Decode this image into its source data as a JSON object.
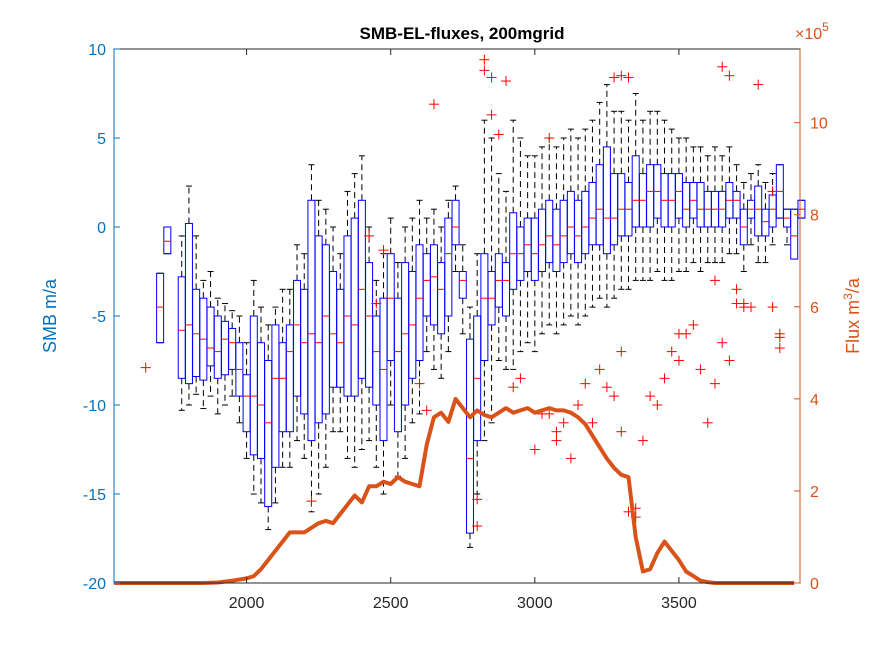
{
  "chart_data": {
    "type": "boxplot",
    "title": "SMB-EL-fluxes, 200mgrid",
    "xlabel": "",
    "ylabel_left": "SMB m/a",
    "ylabel_right_prefix": "Flux m",
    "ylabel_right_sup": "3",
    "ylabel_right_suffix": "/a",
    "right_multiplier_prefix": "×10",
    "right_multiplier_exp": "5",
    "xlim": [
      1540,
      3920
    ],
    "ylim_left": [
      -20,
      10
    ],
    "ylim_right": [
      0,
      11.6
    ],
    "x_ticks": [
      2000,
      2500,
      3000,
      3500
    ],
    "y_ticks_left": [
      -20,
      -15,
      -10,
      -5,
      0,
      5,
      10
    ],
    "y_ticks_right": [
      0,
      2,
      4,
      6,
      8,
      10
    ],
    "colors": {
      "left_axis": "#0072BD",
      "right_axis": "#D95319",
      "box": "#0000FF",
      "median": "#FF0000",
      "whisker": "#000000",
      "outlier": "#FF0000",
      "flux_line": "#D95319"
    },
    "boxes": [
      {
        "x": 1700,
        "q1": -6.5,
        "med": -4.5,
        "q3": -2.6,
        "lo": -6.5,
        "hi": -2.6
      },
      {
        "x": 1725,
        "q1": -1.5,
        "med": -0.8,
        "q3": 0,
        "lo": -1.5,
        "hi": 0
      },
      {
        "x": 1775,
        "q1": -8.5,
        "med": -5.8,
        "q3": -2.8,
        "lo": -10.3,
        "hi": -0.5
      },
      {
        "x": 1800,
        "q1": -8.8,
        "med": -5.5,
        "q3": 0.2,
        "lo": -10,
        "hi": 2.3
      },
      {
        "x": 1825,
        "q1": -8.4,
        "med": -6,
        "q3": -3.5,
        "lo": -9.4,
        "hi": -0.5
      },
      {
        "x": 1850,
        "q1": -8.6,
        "med": -6.3,
        "q3": -4,
        "lo": -10.2,
        "hi": -3
      },
      {
        "x": 1875,
        "q1": -7.8,
        "med": -6.8,
        "q3": -4.5,
        "lo": -9.5,
        "hi": -2.5
      },
      {
        "x": 1900,
        "q1": -8.5,
        "med": -7,
        "q3": -5,
        "lo": -10.5,
        "hi": -4
      },
      {
        "x": 1925,
        "q1": -8.3,
        "med": -6.3,
        "q3": -5.3,
        "lo": -10,
        "hi": -4.3
      },
      {
        "x": 1950,
        "q1": -8,
        "med": -6.5,
        "q3": -5.7,
        "lo": -9.5,
        "hi": -4.7
      },
      {
        "x": 1975,
        "q1": -9.5,
        "med": -8,
        "q3": -6.5,
        "lo": -11,
        "hi": -5
      },
      {
        "x": 2000,
        "q1": -11.5,
        "med": -9.5,
        "q3": -8.3,
        "lo": -13,
        "hi": -6.5
      },
      {
        "x": 2025,
        "q1": -12.8,
        "med": -9.5,
        "q3": -5,
        "lo": -15,
        "hi": -3
      },
      {
        "x": 2050,
        "q1": -13,
        "med": -10,
        "q3": -6.5,
        "lo": -15.5,
        "hi": -4.5
      },
      {
        "x": 2075,
        "q1": -15.7,
        "med": -11,
        "q3": -7.5,
        "lo": -17,
        "hi": -5.5
      },
      {
        "x": 2100,
        "q1": -13.5,
        "med": -8.5,
        "q3": -5.5,
        "lo": -15.5,
        "hi": -4.5
      },
      {
        "x": 2125,
        "q1": -11.5,
        "med": -8.5,
        "q3": -6.5,
        "lo": -13.5,
        "hi": -3.5
      },
      {
        "x": 2150,
        "q1": -11.5,
        "med": -7,
        "q3": -5.5,
        "lo": -13.5,
        "hi": -3.5
      },
      {
        "x": 2175,
        "q1": -9.5,
        "med": -5.5,
        "q3": -3,
        "lo": -12,
        "hi": -1
      },
      {
        "x": 2200,
        "q1": -10.5,
        "med": -6.5,
        "q3": -3.5,
        "lo": -13,
        "hi": -1.5
      },
      {
        "x": 2225,
        "q1": -12,
        "med": -6,
        "q3": 1.5,
        "lo": -16,
        "hi": 3.5
      },
      {
        "x": 2250,
        "q1": -11,
        "med": -6.5,
        "q3": -0.5,
        "lo": -15,
        "hi": 1.5
      },
      {
        "x": 2275,
        "q1": -10.5,
        "med": -5,
        "q3": -1,
        "lo": -13.5,
        "hi": 1
      },
      {
        "x": 2300,
        "q1": -9,
        "med": -6,
        "q3": -2.5,
        "lo": -11.5,
        "hi": 0
      },
      {
        "x": 2325,
        "q1": -9,
        "med": -6.5,
        "q3": -3.5,
        "lo": -11.5,
        "hi": -1.5
      },
      {
        "x": 2350,
        "q1": -9.5,
        "med": -5,
        "q3": -0.5,
        "lo": -13,
        "hi": 2
      },
      {
        "x": 2375,
        "q1": -9.5,
        "med": -5.5,
        "q3": 0.5,
        "lo": -13.5,
        "hi": 3
      },
      {
        "x": 2400,
        "q1": -8.5,
        "med": -3.5,
        "q3": 1.5,
        "lo": -12.5,
        "hi": 4
      },
      {
        "x": 2425,
        "q1": -9,
        "med": -5,
        "q3": -2,
        "lo": -12,
        "hi": 0
      },
      {
        "x": 2450,
        "q1": -10,
        "med": -7,
        "q3": -5,
        "lo": -13.5,
        "hi": -3
      },
      {
        "x": 2475,
        "q1": -12,
        "med": -8,
        "q3": -4,
        "lo": -15,
        "hi": -1.5
      },
      {
        "x": 2500,
        "q1": -7.5,
        "med": -4,
        "q3": -1.5,
        "lo": -10,
        "hi": 0.5
      },
      {
        "x": 2525,
        "q1": -11.5,
        "med": -7,
        "q3": -4,
        "lo": -14,
        "hi": -2
      },
      {
        "x": 2550,
        "q1": -10,
        "med": -6,
        "q3": -2,
        "lo": -13,
        "hi": 0
      },
      {
        "x": 2575,
        "q1": -8.5,
        "med": -5.5,
        "q3": -2.5,
        "lo": -11,
        "hi": 0.5
      },
      {
        "x": 2600,
        "q1": -7.5,
        "med": -4,
        "q3": -1,
        "lo": -10.5,
        "hi": 1.5
      },
      {
        "x": 2625,
        "q1": -5,
        "med": -3,
        "q3": -1.5,
        "lo": -7,
        "hi": 0.5
      },
      {
        "x": 2650,
        "q1": -5.5,
        "med": -2.8,
        "q3": -1,
        "lo": -8,
        "hi": 1
      },
      {
        "x": 2675,
        "q1": -6,
        "med": -3.5,
        "q3": -2,
        "lo": -8.5,
        "hi": 0
      },
      {
        "x": 2700,
        "q1": -5,
        "med": -1.5,
        "q3": 0.5,
        "lo": -7,
        "hi": 1.5
      },
      {
        "x": 2725,
        "q1": -1,
        "med": 0,
        "q3": 1.5,
        "lo": -2.5,
        "hi": 2.3
      },
      {
        "x": 2750,
        "q1": -4,
        "med": -3,
        "q3": -2.5,
        "lo": -6,
        "hi": -1
      },
      {
        "x": 2775,
        "q1": -17.2,
        "med": -13,
        "q3": -6.3,
        "lo": -18,
        "hi": -4.5
      },
      {
        "x": 2800,
        "q1": -12,
        "med": -8.5,
        "q3": -5,
        "lo": -15,
        "hi": -1.5
      },
      {
        "x": 2825,
        "q1": -7.5,
        "med": -4,
        "q3": -1.5,
        "lo": -12,
        "hi": 6
      },
      {
        "x": 2850,
        "q1": -5.5,
        "med": -4,
        "q3": -2.5,
        "lo": -11,
        "hi": 5
      },
      {
        "x": 2875,
        "q1": -4.5,
        "med": -3,
        "q3": -1.5,
        "lo": -7.5,
        "hi": 3
      },
      {
        "x": 2900,
        "q1": -5,
        "med": -3,
        "q3": -2,
        "lo": -8,
        "hi": 2
      },
      {
        "x": 2925,
        "q1": -3.5,
        "med": -1.5,
        "q3": 0.8,
        "lo": -8,
        "hi": 6
      },
      {
        "x": 2950,
        "q1": -3,
        "med": -1.5,
        "q3": 0,
        "lo": -7,
        "hi": 5
      },
      {
        "x": 2975,
        "q1": -2.5,
        "med": -1,
        "q3": 0.5,
        "lo": -6.5,
        "hi": 4
      },
      {
        "x": 3000,
        "q1": -3,
        "med": -1.5,
        "q3": 0.5,
        "lo": -7,
        "hi": 4
      },
      {
        "x": 3025,
        "q1": -2.5,
        "med": -1,
        "q3": 1,
        "lo": -6,
        "hi": 4.5
      },
      {
        "x": 3050,
        "q1": -2,
        "med": -0.5,
        "q3": 1.5,
        "lo": -5.5,
        "hi": 5
      },
      {
        "x": 3075,
        "q1": -2.5,
        "med": -1,
        "q3": 1,
        "lo": -6,
        "hi": 4.5
      },
      {
        "x": 3100,
        "q1": -2,
        "med": -0.5,
        "q3": 1.5,
        "lo": -5.5,
        "hi": 5
      },
      {
        "x": 3125,
        "q1": -1.5,
        "med": 0,
        "q3": 2,
        "lo": -5,
        "hi": 5.5
      },
      {
        "x": 3150,
        "q1": -2,
        "med": -0.5,
        "q3": 1.5,
        "lo": -5.5,
        "hi": 5
      },
      {
        "x": 3175,
        "q1": -1.5,
        "med": 0,
        "q3": 2,
        "lo": -5,
        "hi": 5.5
      },
      {
        "x": 3200,
        "q1": -1,
        "med": 0.5,
        "q3": 2.5,
        "lo": -4.5,
        "hi": 6
      },
      {
        "x": 3225,
        "q1": -1,
        "med": 1,
        "q3": 3.5,
        "lo": -4,
        "hi": 7
      },
      {
        "x": 3250,
        "q1": -1.5,
        "med": 0.5,
        "q3": 4.5,
        "lo": -4.5,
        "hi": 8
      },
      {
        "x": 3275,
        "q1": -1,
        "med": 0.5,
        "q3": 3,
        "lo": -4,
        "hi": 6.5
      },
      {
        "x": 3300,
        "q1": -0.5,
        "med": 1,
        "q3": 3,
        "lo": -3.5,
        "hi": 6.5
      },
      {
        "x": 3325,
        "q1": -0.5,
        "med": 1,
        "q3": 2.5,
        "lo": -3.5,
        "hi": 6
      },
      {
        "x": 3350,
        "q1": 0,
        "med": 1.5,
        "q3": 4,
        "lo": -3,
        "hi": 7.5
      },
      {
        "x": 3375,
        "q1": 0,
        "med": 1.5,
        "q3": 3,
        "lo": -3,
        "hi": 6
      },
      {
        "x": 3400,
        "q1": 0,
        "med": 2,
        "q3": 3.5,
        "lo": -3,
        "hi": 6.5
      },
      {
        "x": 3425,
        "q1": 0.5,
        "med": 2,
        "q3": 3.5,
        "lo": -2.5,
        "hi": 6.5
      },
      {
        "x": 3450,
        "q1": 0,
        "med": 1.5,
        "q3": 3,
        "lo": -3,
        "hi": 6
      },
      {
        "x": 3475,
        "q1": 0,
        "med": 1.5,
        "q3": 3,
        "lo": -3,
        "hi": 5.5
      },
      {
        "x": 3500,
        "q1": 0.5,
        "med": 2,
        "q3": 3,
        "lo": -2.5,
        "hi": 5
      },
      {
        "x": 3525,
        "q1": 0,
        "med": 1,
        "q3": 2.5,
        "lo": -2.5,
        "hi": 5
      },
      {
        "x": 3550,
        "q1": 0.5,
        "med": 1.5,
        "q3": 2.5,
        "lo": -2,
        "hi": 4.5
      },
      {
        "x": 3575,
        "q1": 0,
        "med": 1,
        "q3": 2.5,
        "lo": -2.5,
        "hi": 4.5
      },
      {
        "x": 3600,
        "q1": 0,
        "med": 1,
        "q3": 2,
        "lo": -2,
        "hi": 4
      },
      {
        "x": 3625,
        "q1": 0,
        "med": 1,
        "q3": 2,
        "lo": -2,
        "hi": 4.5
      },
      {
        "x": 3650,
        "q1": 0,
        "med": 1,
        "q3": 2,
        "lo": -2,
        "hi": 4
      },
      {
        "x": 3675,
        "q1": 0.5,
        "med": 1.5,
        "q3": 2.5,
        "lo": -1.5,
        "hi": 4.5
      },
      {
        "x": 3700,
        "q1": 0.5,
        "med": 1.5,
        "q3": 2,
        "lo": -1.5,
        "hi": 3.5
      },
      {
        "x": 3725,
        "q1": -1,
        "med": 0,
        "q3": 1,
        "lo": -2.5,
        "hi": 2.5
      },
      {
        "x": 3750,
        "q1": 0.5,
        "med": 1,
        "q3": 1.5,
        "lo": -1,
        "hi": 3
      },
      {
        "x": 3775,
        "q1": -0.5,
        "med": 1,
        "q3": 2.3,
        "lo": -2,
        "hi": 3.5
      },
      {
        "x": 3800,
        "q1": -0.5,
        "med": 0.3,
        "q3": 1,
        "lo": -2,
        "hi": 2.5
      },
      {
        "x": 3825,
        "q1": 0,
        "med": 1,
        "q3": 1.8,
        "lo": -1,
        "hi": 3
      },
      {
        "x": 3850,
        "q1": 0.5,
        "med": 2,
        "q3": 3.5,
        "lo": 0.5,
        "hi": 3.5
      },
      {
        "x": 3875,
        "q1": 0,
        "med": 0.5,
        "q3": 1,
        "lo": -1,
        "hi": 1
      },
      {
        "x": 3900,
        "q1": -1.8,
        "med": -0.5,
        "q3": 1,
        "lo": -1.8,
        "hi": 1
      },
      {
        "x": 3925,
        "q1": 0.5,
        "med": 1,
        "q3": 1.5,
        "lo": 0.5,
        "hi": 1.5
      }
    ],
    "outliers": [
      [
        1650,
        -7.9
      ],
      [
        2225,
        -15.4
      ],
      [
        2425,
        -0.5
      ],
      [
        2450,
        -4.3
      ],
      [
        2475,
        -1.3
      ],
      [
        2600,
        -8.8
      ],
      [
        2625,
        -10.3
      ],
      [
        2650,
        6.9
      ],
      [
        2800,
        -16.8
      ],
      [
        2800,
        -15.3
      ],
      [
        2825,
        9.4
      ],
      [
        2825,
        8.8
      ],
      [
        2850,
        8.4
      ],
      [
        2850,
        6.3
      ],
      [
        2875,
        5.2
      ],
      [
        2900,
        8.2
      ],
      [
        2925,
        -9
      ],
      [
        2950,
        -8.5
      ],
      [
        3000,
        -12.5
      ],
      [
        3025,
        -10.5
      ],
      [
        3050,
        -10.5
      ],
      [
        3050,
        5
      ],
      [
        3075,
        -11.5
      ],
      [
        3075,
        -12
      ],
      [
        3100,
        -11
      ],
      [
        3125,
        -13
      ],
      [
        3150,
        -10
      ],
      [
        3175,
        -8.8
      ],
      [
        3200,
        -11
      ],
      [
        3225,
        -8
      ],
      [
        3250,
        -9
      ],
      [
        3275,
        -9.5
      ],
      [
        3300,
        -11.5
      ],
      [
        3300,
        -7
      ],
      [
        3325,
        -16
      ],
      [
        3350,
        -15.8
      ],
      [
        3350,
        -16.3
      ],
      [
        3375,
        -12
      ],
      [
        3400,
        -9.5
      ],
      [
        3425,
        -10
      ],
      [
        3450,
        -8.5
      ],
      [
        3475,
        -7
      ],
      [
        3500,
        -6
      ],
      [
        3500,
        -7.5
      ],
      [
        3525,
        -6
      ],
      [
        3550,
        -5.5
      ],
      [
        3575,
        -8
      ],
      [
        3600,
        -11
      ],
      [
        3625,
        -8.8
      ],
      [
        3650,
        -6.5
      ],
      [
        3675,
        -7.5
      ],
      [
        3700,
        -3.5
      ],
      [
        3725,
        -4.5
      ],
      [
        3750,
        -4.5
      ],
      [
        3825,
        -4.5
      ],
      [
        3850,
        -6
      ],
      [
        3850,
        -6.8
      ],
      [
        3625,
        -3
      ],
      [
        3650,
        9
      ],
      [
        3675,
        8.5
      ],
      [
        3700,
        -4.3
      ],
      [
        3725,
        -4.3
      ],
      [
        3775,
        8
      ],
      [
        3825,
        2
      ],
      [
        3850,
        -6.2
      ],
      [
        3275,
        8.4
      ],
      [
        3300,
        8.5
      ],
      [
        3325,
        8.4
      ]
    ],
    "flux_line": {
      "x": [
        1540,
        1700,
        1800,
        1850,
        1900,
        1950,
        2000,
        2025,
        2050,
        2075,
        2100,
        2125,
        2150,
        2175,
        2200,
        2225,
        2250,
        2275,
        2300,
        2325,
        2350,
        2375,
        2400,
        2425,
        2450,
        2475,
        2500,
        2525,
        2550,
        2575,
        2600,
        2625,
        2650,
        2675,
        2700,
        2725,
        2750,
        2775,
        2800,
        2825,
        2850,
        2875,
        2900,
        2925,
        2950,
        2975,
        3000,
        3025,
        3050,
        3075,
        3100,
        3125,
        3150,
        3175,
        3200,
        3225,
        3250,
        3275,
        3300,
        3325,
        3350,
        3375,
        3400,
        3425,
        3450,
        3475,
        3500,
        3525,
        3550,
        3575,
        3600,
        3625,
        3650,
        3675,
        3700,
        3725,
        3750,
        3775,
        3800,
        3825,
        3850,
        3875,
        3900
      ],
      "y": [
        0,
        0,
        0,
        0,
        0.01,
        0.05,
        0.1,
        0.15,
        0.3,
        0.5,
        0.7,
        0.9,
        1.1,
        1.1,
        1.1,
        1.2,
        1.3,
        1.35,
        1.3,
        1.5,
        1.7,
        1.9,
        1.75,
        2.1,
        2.1,
        2.2,
        2.15,
        2.3,
        2.2,
        2.15,
        2.1,
        3,
        3.6,
        3.7,
        3.5,
        4.0,
        3.8,
        3.6,
        3.75,
        3.65,
        3.6,
        3.7,
        3.8,
        3.7,
        3.75,
        3.8,
        3.7,
        3.75,
        3.8,
        3.75,
        3.75,
        3.7,
        3.6,
        3.45,
        3.2,
        2.95,
        2.7,
        2.5,
        2.35,
        2.3,
        1.0,
        0.25,
        0.3,
        0.65,
        0.9,
        0.7,
        0.5,
        0.25,
        0.15,
        0.05,
        0.02,
        0,
        0,
        0,
        0,
        0,
        0,
        0,
        0,
        0,
        0,
        0,
        0
      ]
    }
  }
}
